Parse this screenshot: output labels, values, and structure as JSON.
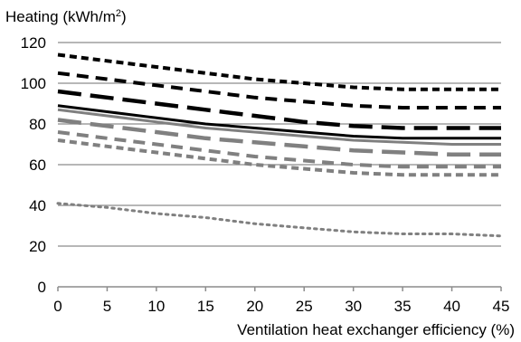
{
  "chart_data": {
    "type": "line",
    "ylabel": "Heating (kWh/m",
    "ylabel_sup": "2",
    "ylabel_close": ")",
    "xlabel": "Ventilation heat exchanger efficiency (%)",
    "x": [
      0,
      5,
      10,
      15,
      20,
      25,
      30,
      35,
      40,
      45
    ],
    "xlim": [
      0,
      45
    ],
    "ylim": [
      0,
      120
    ],
    "y_ticks": [
      "0",
      "20",
      "40",
      "60",
      "80",
      "100",
      "120"
    ],
    "x_ticks": [
      "0",
      "5",
      "10",
      "15",
      "20",
      "25",
      "30",
      "35",
      "40",
      "45"
    ],
    "grid": "horizontal",
    "legend": "none",
    "series": [
      {
        "color": "#000000",
        "dash": "short",
        "values": [
          114,
          111,
          108,
          105,
          102,
          100,
          98,
          97,
          97,
          97
        ]
      },
      {
        "color": "#000000",
        "dash": "medium",
        "values": [
          105,
          102,
          99,
          96,
          93,
          91,
          89,
          88,
          88,
          88
        ]
      },
      {
        "color": "#000000",
        "dash": "long",
        "values": [
          96,
          93,
          90,
          87,
          84,
          81,
          79,
          78,
          78,
          78
        ]
      },
      {
        "color": "#000000",
        "dash": "solid",
        "values": [
          89,
          86,
          83,
          80,
          78,
          76,
          74,
          73,
          73,
          73
        ]
      },
      {
        "color": "#808080",
        "dash": "solid",
        "values": [
          87,
          84,
          81,
          78,
          76,
          74,
          72,
          71,
          70,
          70
        ]
      },
      {
        "color": "#808080",
        "dash": "long",
        "values": [
          82,
          79,
          76,
          73,
          71,
          69,
          67,
          66,
          65,
          65
        ]
      },
      {
        "color": "#808080",
        "dash": "medium",
        "values": [
          76,
          73,
          70,
          67,
          64,
          62,
          60,
          59,
          59,
          59
        ]
      },
      {
        "color": "#808080",
        "dash": "short",
        "values": [
          72,
          69,
          66,
          63,
          60,
          58,
          56,
          55,
          55,
          55
        ]
      },
      {
        "color": "#808080",
        "dash": "dotted",
        "values": [
          41,
          39,
          36,
          34,
          31,
          29,
          27,
          26,
          26,
          25
        ]
      }
    ]
  }
}
